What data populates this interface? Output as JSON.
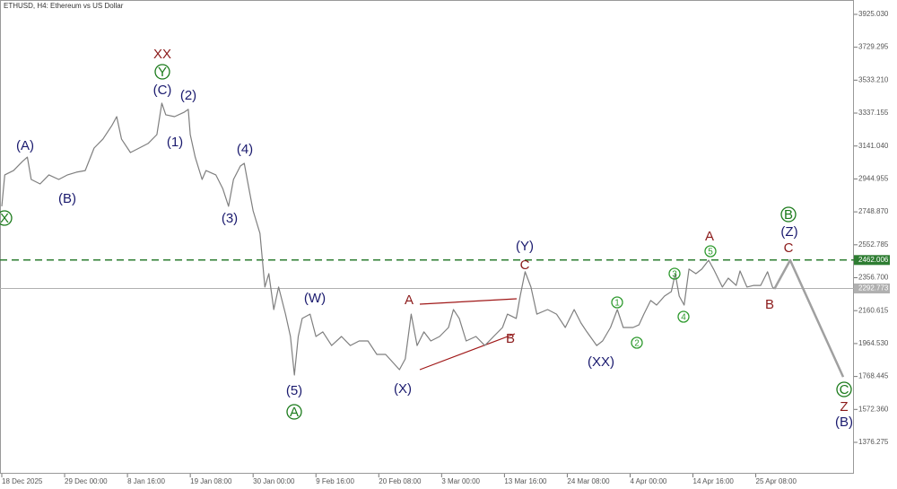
{
  "chart_data": {
    "type": "line",
    "title": "ETHUSD, H4:  Ethereum vs US Dollar",
    "xlim": [
      0,
      868
    ],
    "xticks": [
      {
        "value": 0,
        "label": "18 Dec 2025"
      },
      {
        "value": 64,
        "label": "29 Dec 00:00"
      },
      {
        "value": 128,
        "label": "8 Jan 16:00"
      },
      {
        "value": 192,
        "label": "19 Jan 08:00"
      },
      {
        "value": 256,
        "label": "30 Jan 00:00"
      },
      {
        "value": 320,
        "label": "9 Feb 16:00"
      },
      {
        "value": 384,
        "label": "20 Feb 08:00"
      },
      {
        "value": 448,
        "label": "3 Mar 00:00"
      },
      {
        "value": 512,
        "label": "13 Mar 16:00"
      },
      {
        "value": 576,
        "label": "24 Mar 08:00"
      },
      {
        "value": 640,
        "label": "4 Apr 00:00"
      },
      {
        "value": 704,
        "label": "14 Apr 16:00"
      },
      {
        "value": 768,
        "label": "25 Apr 08:00"
      }
    ],
    "ylim": [
      1189.3,
      4010.5
    ],
    "yticks": [
      {
        "value": 3925.03,
        "label": "3925.030"
      },
      {
        "value": 3729.295,
        "label": "3729.295"
      },
      {
        "value": 3533.21,
        "label": "3533.210"
      },
      {
        "value": 3337.155,
        "label": "3337.155"
      },
      {
        "value": 3141.04,
        "label": "3141.040"
      },
      {
        "value": 2944.955,
        "label": "2944.955"
      },
      {
        "value": 2748.87,
        "label": "2748.870"
      },
      {
        "value": 2552.785,
        "label": "2552.785"
      },
      {
        "value": 2356.7,
        "label": "2356.700"
      },
      {
        "value": 2160.615,
        "label": "2160.615"
      },
      {
        "value": 1964.53,
        "label": "1964.530"
      },
      {
        "value": 1768.445,
        "label": "1768.445"
      },
      {
        "value": 1572.36,
        "label": "1572.360"
      },
      {
        "value": 1376.275,
        "label": "1376.275"
      }
    ],
    "hlines": [
      {
        "value": 2462.006,
        "color": "#2e7d32",
        "dashed": true
      },
      {
        "value": 2292.773,
        "color": "#b0b0b0",
        "dashed": false
      }
    ],
    "series": [
      {
        "color": "#7f7f7f",
        "x": [
          0,
          3,
          12,
          21,
          26,
          30,
          39,
          48,
          58,
          67,
          76,
          85,
          94,
          103,
          112,
          117,
          122,
          131,
          140,
          149,
          158,
          163,
          167,
          176,
          186,
          190,
          192,
          197,
          204,
          208,
          218,
          225,
          231,
          236,
          243,
          247,
          250,
          256,
          263,
          268,
          272,
          277,
          282,
          289,
          294,
          298,
          302,
          306,
          314,
          320,
          327,
          336,
          346,
          355,
          364,
          373,
          382,
          391,
          405,
          411,
          417,
          423,
          430,
          437,
          446,
          455,
          460,
          466,
          473,
          483,
          492,
          501,
          510,
          515,
          524,
          528,
          533,
          539,
          545,
          556,
          565,
          574,
          583,
          590,
          596,
          606,
          612,
          620,
          627,
          633,
          643,
          649,
          654,
          661,
          667,
          675,
          682,
          686,
          690,
          695,
          700,
          707,
          713,
          720,
          725,
          734,
          740,
          748,
          752,
          759,
          766,
          773,
          780,
          785,
          787
        ],
        "values": [
          2782,
          2969,
          2995,
          3049,
          3075,
          2942,
          2915,
          2969,
          2942,
          2969,
          2985,
          2995,
          3129,
          3182,
          3262,
          3316,
          3182,
          3102,
          3129,
          3156,
          3209,
          3396,
          3327,
          3316,
          3343,
          3359,
          3209,
          3075,
          2942,
          2995,
          2969,
          2888,
          2782,
          2942,
          3022,
          3038,
          2942,
          2755,
          2621,
          2301,
          2381,
          2167,
          2301,
          2140,
          2007,
          1777,
          2007,
          2114,
          2140,
          2007,
          2034,
          1953,
          2007,
          1953,
          1980,
          1980,
          1900,
          1900,
          1809,
          1873,
          2140,
          1953,
          2034,
          1980,
          2007,
          2060,
          2167,
          2114,
          1980,
          2007,
          1953,
          2007,
          2060,
          2140,
          2114,
          2247,
          2392,
          2301,
          2140,
          2167,
          2140,
          2060,
          2167,
          2087,
          2034,
          1953,
          1980,
          2060,
          2167,
          2060,
          2060,
          2076,
          2140,
          2221,
          2194,
          2247,
          2274,
          2381,
          2247,
          2194,
          2408,
          2381,
          2408,
          2461,
          2408,
          2301,
          2354,
          2311,
          2397,
          2301,
          2311,
          2311,
          2392,
          2301,
          2290
        ]
      },
      {
        "color": "#a0a0a0",
        "x": [
          787,
          803,
          857
        ],
        "values": [
          2290,
          2461,
          1766
        ]
      }
    ],
    "annotations": [
      {
        "text": "XX",
        "color": "#8b1a1a",
        "circled": false
      },
      {
        "text": "Y",
        "color": "#1a7a1a",
        "circled": true
      },
      {
        "text": "(C)",
        "color": "#1a1a6e",
        "circled": false
      },
      {
        "text": "(2)",
        "color": "#1a1a6e",
        "circled": false
      },
      {
        "text": "(1)",
        "color": "#1a1a6e",
        "circled": false
      },
      {
        "text": "(A)",
        "color": "#1a1a6e",
        "circled": false
      },
      {
        "text": "(B)",
        "color": "#1a1a6e",
        "circled": false
      },
      {
        "text": "(4)",
        "color": "#1a1a6e",
        "circled": false
      },
      {
        "text": "(3)",
        "color": "#1a1a6e",
        "circled": false
      },
      {
        "text": "X",
        "color": "#1a7a1a",
        "circled": true
      },
      {
        "text": "(W)",
        "color": "#1a1a6e",
        "circled": false
      },
      {
        "text": "(5)",
        "color": "#1a1a6e",
        "circled": false
      },
      {
        "text": "A",
        "color": "#1a7a1a",
        "circled": true
      },
      {
        "text": "A",
        "color": "#8b1a1a",
        "circled": false
      },
      {
        "text": "B",
        "color": "#8b1a1a",
        "circled": false
      },
      {
        "text": "C",
        "color": "#8b1a1a",
        "circled": false
      },
      {
        "text": "(Y)",
        "color": "#1a1a6e",
        "circled": false
      },
      {
        "text": "(X)",
        "color": "#1a1a6e",
        "circled": false
      },
      {
        "text": "(XX)",
        "color": "#1a1a6e",
        "circled": false
      },
      {
        "text": "1",
        "color": "#2e9a2e",
        "circled": true
      },
      {
        "text": "2",
        "color": "#2e9a2e",
        "circled": true
      },
      {
        "text": "3",
        "color": "#2e9a2e",
        "circled": true
      },
      {
        "text": "4",
        "color": "#2e9a2e",
        "circled": true
      },
      {
        "text": "5",
        "color": "#2e9a2e",
        "circled": true
      },
      {
        "text": "A",
        "color": "#8b1a1a",
        "circled": false
      },
      {
        "text": "B",
        "color": "#1a7a1a",
        "circled": true
      },
      {
        "text": "(Z)",
        "color": "#1a1a6e",
        "circled": false
      },
      {
        "text": "C",
        "color": "#8b1a1a",
        "circled": false
      },
      {
        "text": "B",
        "color": "#8b1a1a",
        "circled": false
      },
      {
        "text": "C",
        "color": "#1a7a1a",
        "circled": true
      },
      {
        "text": "Z",
        "color": "#8b1a1a",
        "circled": false
      },
      {
        "text": "(B)",
        "color": "#1a1a6e",
        "circled": false
      }
    ]
  }
}
